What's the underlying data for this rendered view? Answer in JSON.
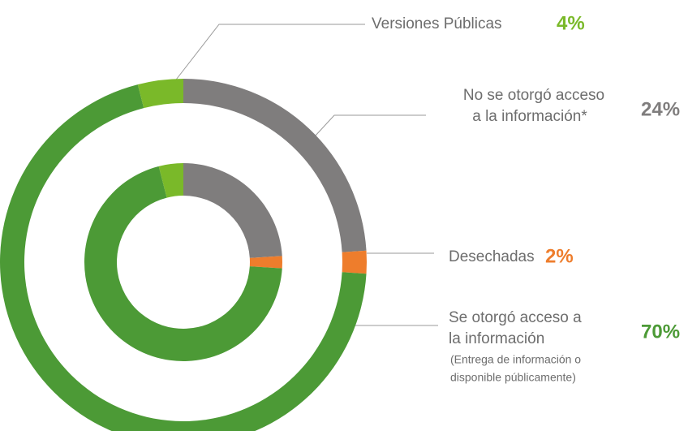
{
  "chart_data": {
    "type": "donut",
    "categories": [
      [
        "No se  otorgó acceso",
        "a la información*"
      ],
      [
        "Desechadas"
      ],
      [
        "Se  otorgó acceso a",
        "la información"
      ],
      [
        "Versiones Públicas"
      ]
    ],
    "annotation": [
      "(Entrega de información o",
      "disponible públicamente)"
    ],
    "values": [
      24,
      2,
      70,
      4
    ],
    "value_labels": [
      "24%",
      "2%",
      "70%",
      "4%"
    ],
    "colors": [
      "#7f7d7d",
      "#ee7d2c",
      "#4c9a36",
      "#7ab929"
    ]
  }
}
